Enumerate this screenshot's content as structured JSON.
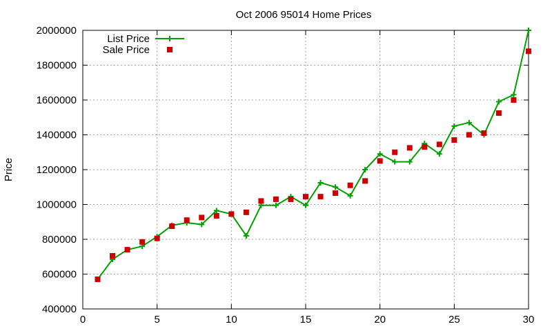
{
  "chart_data": {
    "type": "line",
    "title": "Oct 2006 95014 Home Prices",
    "xlabel": "",
    "ylabel": "Price",
    "xlim": [
      0,
      30
    ],
    "ylim": [
      400000,
      2000000
    ],
    "xticks": [
      0,
      5,
      10,
      15,
      20,
      25,
      30
    ],
    "yticks": [
      400000,
      600000,
      800000,
      1000000,
      1200000,
      1400000,
      1600000,
      1800000,
      2000000
    ],
    "grid": true,
    "legend_position": "top-left",
    "series": [
      {
        "name": "List Price",
        "style": "line+cross",
        "color": "#00a000",
        "x": [
          1,
          2,
          3,
          4,
          5,
          6,
          7,
          8,
          9,
          10,
          11,
          12,
          13,
          14,
          15,
          16,
          17,
          18,
          19,
          20,
          21,
          22,
          23,
          24,
          25,
          26,
          27,
          28,
          29,
          30
        ],
        "y": [
          570000,
          685000,
          740000,
          760000,
          815000,
          880000,
          895000,
          885000,
          965000,
          945000,
          820000,
          995000,
          995000,
          1045000,
          995000,
          1125000,
          1100000,
          1050000,
          1200000,
          1290000,
          1245000,
          1245000,
          1350000,
          1290000,
          1450000,
          1470000,
          1400000,
          1590000,
          1630000,
          2000000
        ]
      },
      {
        "name": "Sale Price",
        "style": "square",
        "color": "#cc0000",
        "x": [
          1,
          2,
          3,
          4,
          5,
          6,
          7,
          8,
          9,
          10,
          11,
          12,
          13,
          14,
          15,
          16,
          17,
          18,
          19,
          20,
          21,
          22,
          23,
          24,
          25,
          26,
          27,
          28,
          29,
          30
        ],
        "y": [
          570000,
          705000,
          740000,
          785000,
          805000,
          875000,
          910000,
          925000,
          935000,
          945000,
          955000,
          1020000,
          1030000,
          1030000,
          1045000,
          1045000,
          1065000,
          1110000,
          1135000,
          1250000,
          1300000,
          1325000,
          1330000,
          1345000,
          1370000,
          1400000,
          1410000,
          1525000,
          1600000,
          1880000
        ]
      }
    ]
  }
}
